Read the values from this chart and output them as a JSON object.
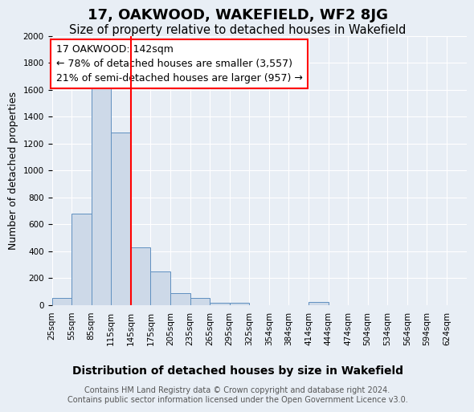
{
  "title": "17, OAKWOOD, WAKEFIELD, WF2 8JG",
  "subtitle": "Size of property relative to detached houses in Wakefield",
  "xlabel": "Distribution of detached houses by size in Wakefield",
  "ylabel": "Number of detached properties",
  "footer": "Contains HM Land Registry data © Crown copyright and database right 2024.\nContains public sector information licensed under the Open Government Licence v3.0.",
  "annotation_title": "17 OAKWOOD: 142sqm",
  "annotation_line1": "← 78% of detached houses are smaller (3,557)",
  "annotation_line2": "21% of semi-detached houses are larger (957) →",
  "bin_labels": [
    "25sqm",
    "55sqm",
    "85sqm",
    "115sqm",
    "145sqm",
    "175sqm",
    "205sqm",
    "235sqm",
    "265sqm",
    "295sqm",
    "325sqm",
    "354sqm",
    "384sqm",
    "414sqm",
    "444sqm",
    "474sqm",
    "504sqm",
    "534sqm",
    "564sqm",
    "594sqm",
    "624sqm"
  ],
  "bar_values": [
    55,
    680,
    1630,
    1280,
    430,
    250,
    90,
    55,
    20,
    15,
    0,
    0,
    0,
    25,
    0,
    0,
    0,
    0,
    0,
    0,
    0
  ],
  "bar_color": "#cdd9e8",
  "bar_edge_color": "#6090c0",
  "red_line_x": 4.0,
  "ylim": [
    0,
    2000
  ],
  "background_color": "#e8eef5",
  "plot_background": "#e8eef5",
  "grid_color": "#ffffff",
  "title_fontsize": 13,
  "subtitle_fontsize": 10.5,
  "annotation_fontsize": 9,
  "tick_fontsize": 7.5,
  "ylabel_fontsize": 9,
  "xlabel_fontsize": 10,
  "footer_fontsize": 7
}
